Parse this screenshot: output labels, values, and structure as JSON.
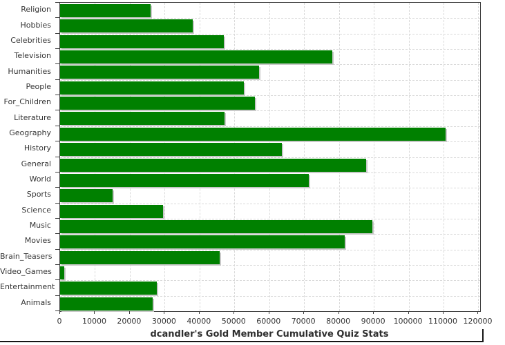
{
  "chart_data": {
    "type": "bar",
    "orientation": "horizontal",
    "title": "dcandler's Gold Member Cumulative Quiz Stats",
    "categories": [
      "Religion",
      "Hobbies",
      "Celebrities",
      "Television",
      "Humanities",
      "People",
      "For_Children",
      "Literature",
      "Geography",
      "History",
      "General",
      "World",
      "Sports",
      "Science",
      "Music",
      "Movies",
      "Brain_Teasers",
      "Video_Games",
      "Entertainment",
      "Animals"
    ],
    "values": [
      26000,
      38000,
      47000,
      78000,
      57000,
      52800,
      55800,
      47200,
      110600,
      63700,
      87800,
      71300,
      15100,
      29500,
      89600,
      81700,
      45800,
      1100,
      27700,
      26600
    ],
    "xlabel": "",
    "ylabel": "",
    "xlim": [
      0,
      120500
    ],
    "x_tick_step": 10000,
    "x_tick_labels": [
      "0",
      "10000",
      "20000",
      "30000",
      "40000",
      "50000",
      "60000",
      "70000",
      "80000",
      "90000",
      "100000",
      "110000",
      "120000"
    ],
    "grid": true,
    "legend": "none",
    "colors": {
      "bar": "#008000",
      "bar_shadow": "#c9c9c9",
      "grid": "#d9d9d9",
      "axis": "#3a3a3a",
      "text": "#343434",
      "background": "#ffffff"
    }
  }
}
